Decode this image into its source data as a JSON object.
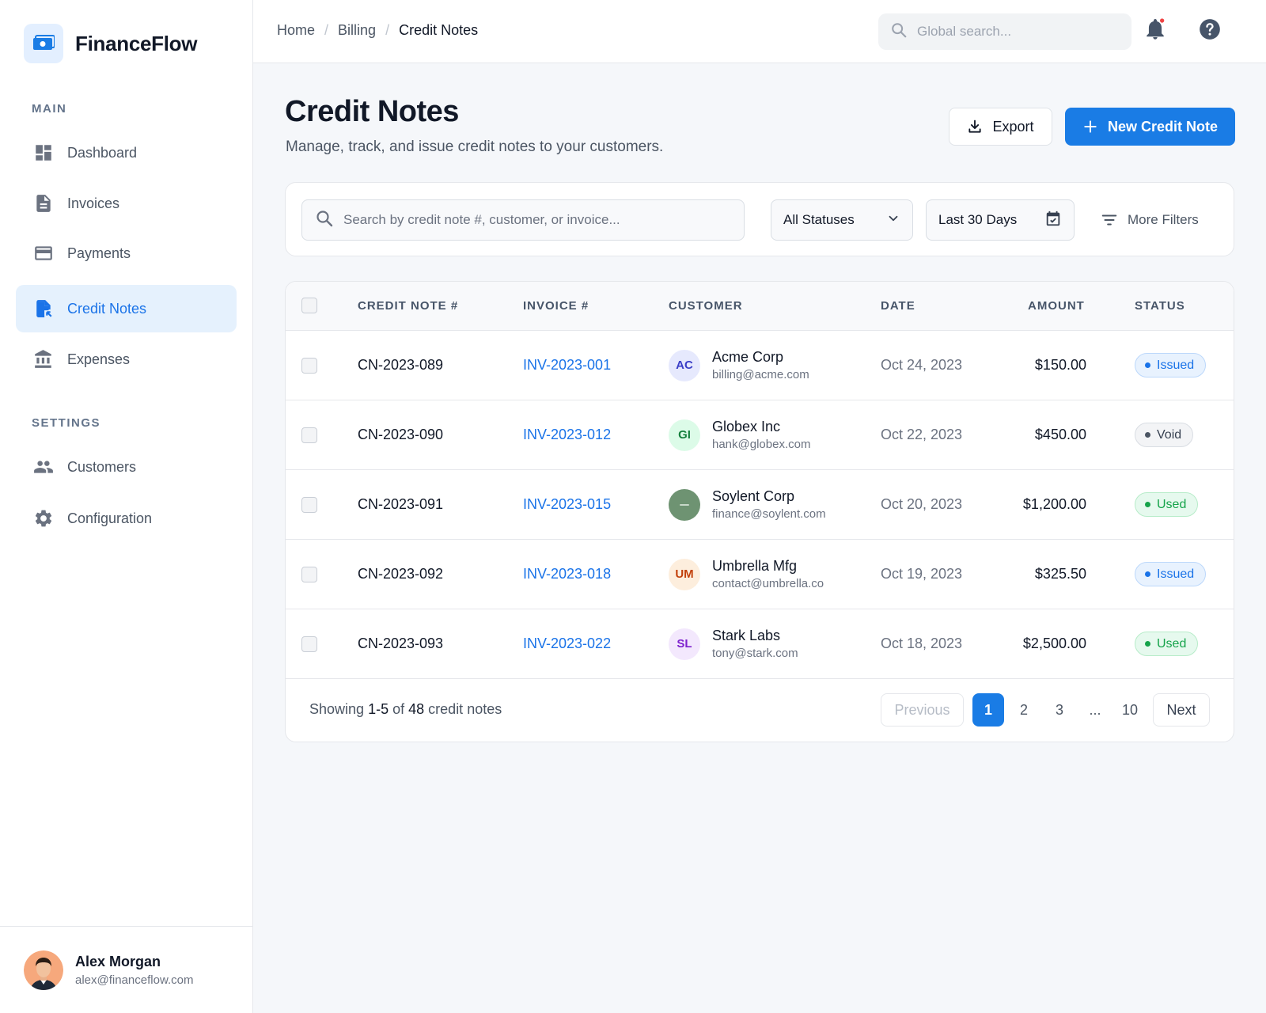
{
  "app": {
    "name": "FinanceFlow"
  },
  "sidebar": {
    "sections": [
      {
        "title": "MAIN"
      },
      {
        "title": "SETTINGS"
      }
    ],
    "items": [
      {
        "label": "Dashboard",
        "icon": "dashboard-icon"
      },
      {
        "label": "Invoices",
        "icon": "document-icon"
      },
      {
        "label": "Payments",
        "icon": "credit-card-icon"
      },
      {
        "label": "Credit Notes",
        "icon": "credit-note-icon",
        "active": true
      },
      {
        "label": "Expenses",
        "icon": "bank-icon"
      },
      {
        "label": "Customers",
        "icon": "people-icon"
      },
      {
        "label": "Configuration",
        "icon": "gear-icon"
      }
    ],
    "user": {
      "name": "Alex Morgan",
      "email": "alex@financeflow.com"
    }
  },
  "topbar": {
    "breadcrumb": [
      "Home",
      "Billing",
      "Credit Notes"
    ],
    "search_placeholder": "Global search..."
  },
  "page": {
    "title": "Credit Notes",
    "subtitle": "Manage, track, and issue credit notes to your customers.",
    "export_label": "Export",
    "new_label": "New Credit Note"
  },
  "filters": {
    "search_placeholder": "Search by credit note #, customer, or invoice...",
    "status_value": "All Statuses",
    "date_value": "Last 30 Days",
    "more_label": "More Filters"
  },
  "table": {
    "columns": [
      "CREDIT NOTE #",
      "INVOICE #",
      "CUSTOMER",
      "DATE",
      "AMOUNT",
      "STATUS"
    ],
    "rows": [
      {
        "credit_note": "CN-2023-089",
        "invoice": "INV-2023-001",
        "initials": "AC",
        "customer": "Acme Corp",
        "email": "billing@acme.com",
        "date": "Oct 24, 2023",
        "amount": "$150.00",
        "status": "Issued"
      },
      {
        "credit_note": "CN-2023-090",
        "invoice": "INV-2023-012",
        "initials": "GI",
        "customer": "Globex Inc",
        "email": "hank@globex.com",
        "date": "Oct 22, 2023",
        "amount": "$450.00",
        "status": "Void"
      },
      {
        "credit_note": "CN-2023-091",
        "invoice": "INV-2023-015",
        "initials": "",
        "customer": "Soylent Corp",
        "email": "finance@soylent.com",
        "date": "Oct 20, 2023",
        "amount": "$1,200.00",
        "status": "Used"
      },
      {
        "credit_note": "CN-2023-092",
        "invoice": "INV-2023-018",
        "initials": "UM",
        "customer": "Umbrella Mfg",
        "email": "contact@umbrella.co",
        "date": "Oct 19, 2023",
        "amount": "$325.50",
        "status": "Issued"
      },
      {
        "credit_note": "CN-2023-093",
        "invoice": "INV-2023-022",
        "initials": "SL",
        "customer": "Stark Labs",
        "email": "tony@stark.com",
        "date": "Oct 18, 2023",
        "amount": "$2,500.00",
        "status": "Used"
      }
    ],
    "footer": {
      "showing_prefix": "Showing",
      "range": "1-5",
      "of": "of",
      "total": "48",
      "suffix": "credit notes"
    },
    "pagination": {
      "previous": "Previous",
      "pages": [
        "1",
        "2",
        "3",
        "...",
        "10"
      ],
      "current": "1",
      "next": "Next"
    }
  },
  "colors": {
    "accent": "#1a7ce5",
    "issued": "#1a73e8",
    "used": "#16a34a",
    "void": "#4b5563"
  }
}
